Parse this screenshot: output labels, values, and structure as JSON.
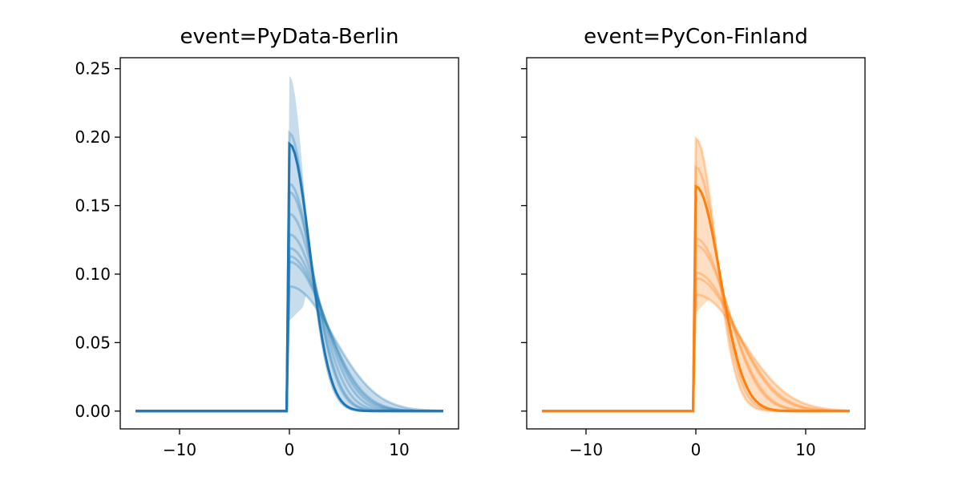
{
  "chart_data": [
    {
      "type": "line",
      "title": "event=PyData-Berlin",
      "color": "#1f77b4",
      "xlim": [
        -15.4,
        15.4
      ],
      "ylim": [
        -0.013,
        0.258
      ],
      "x_range": [
        -14,
        14
      ],
      "xticks": [
        -10,
        0,
        10
      ],
      "xtick_labels": [
        "−10",
        "0",
        "10"
      ],
      "yticks": [
        0,
        0.05,
        0.1,
        0.15,
        0.2,
        0.25
      ],
      "ytick_labels": [
        "0.00",
        "0.05",
        "0.10",
        "0.15",
        "0.20",
        "0.25"
      ],
      "individual_peaks": [
        0.203,
        0.195,
        0.166,
        0.16,
        0.144,
        0.129,
        0.119,
        0.113,
        0.109,
        0.091
      ],
      "mean_peak": 0.195,
      "band_upper_peak": 0.245,
      "band_lower_start": 0.066
    },
    {
      "type": "line",
      "title": "event=PyCon-Finland",
      "color": "#ff7f0e",
      "xlim": [
        -15.4,
        15.4
      ],
      "ylim": [
        -0.013,
        0.258
      ],
      "x_range": [
        -14,
        14
      ],
      "xticks": [
        -10,
        0,
        10
      ],
      "xtick_labels": [
        "−10",
        "0",
        "10"
      ],
      "yticks": [
        0,
        0.05,
        0.1,
        0.15,
        0.2,
        0.25
      ],
      "ytick_labels": [],
      "individual_peaks": [
        0.199,
        0.178,
        0.164,
        0.126,
        0.121,
        0.101,
        0.097,
        0.085
      ],
      "mean_peak": 0.164,
      "band_upper_peak": 0.199,
      "band_lower_start": 0.072
    }
  ]
}
